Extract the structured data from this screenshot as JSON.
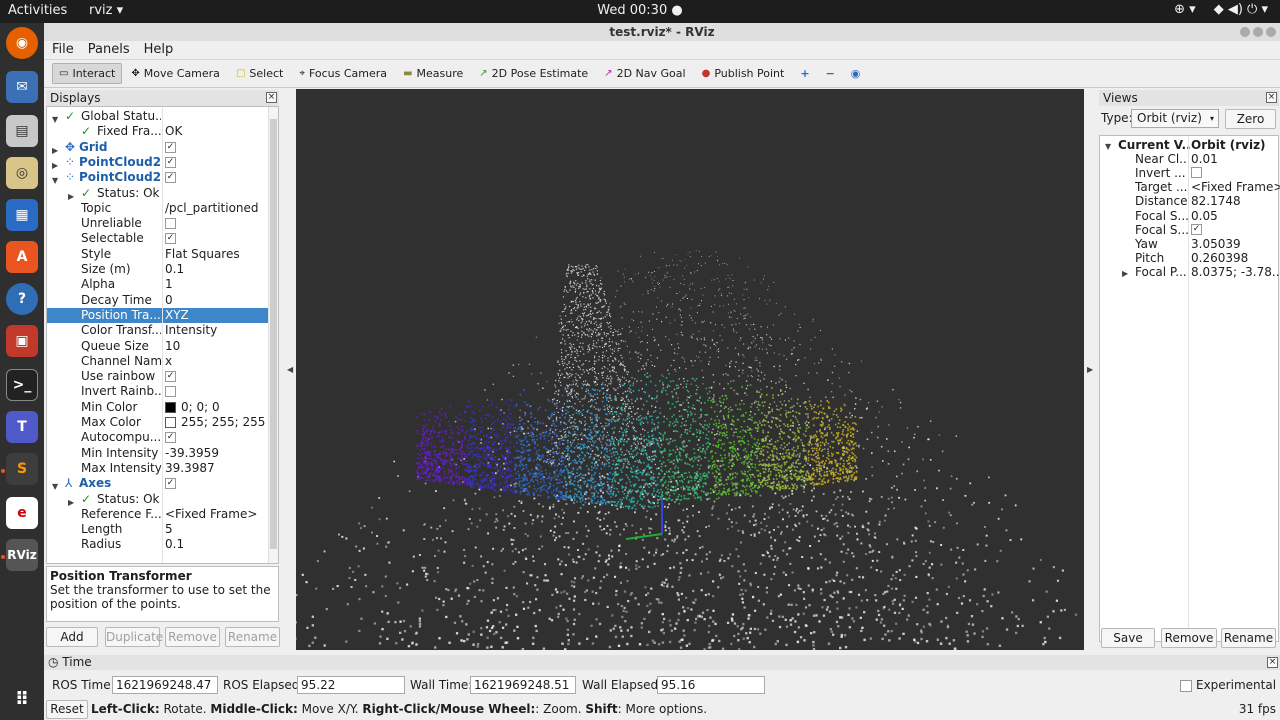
{
  "topbar": {
    "activities": "Activities",
    "app": "rviz ▾",
    "clock": "Wed 00:30 ●",
    "tray": [
      "⊕ ▾",
      "◆ ◀) ⏻ ▾"
    ]
  },
  "window": {
    "title": "test.rviz* - RViz"
  },
  "menu": [
    "File",
    "Panels",
    "Help"
  ],
  "toolbar": [
    {
      "label": "Interact",
      "icon": "▭"
    },
    {
      "label": "Move Camera",
      "icon": "✥"
    },
    {
      "label": "Select",
      "icon": "▢"
    },
    {
      "label": "Focus Camera",
      "icon": "⌖"
    },
    {
      "label": "Measure",
      "icon": "▬"
    },
    {
      "label": "2D Pose Estimate",
      "icon": "↗"
    },
    {
      "label": "2D Nav Goal",
      "icon": "↗"
    },
    {
      "label": "Publish Point",
      "icon": "●"
    }
  ],
  "displays": {
    "title": "Displays",
    "rows": [
      {
        "k": "Global Statu...",
        "v": "",
        "indent": 1,
        "exp": "▼",
        "chk": "✓"
      },
      {
        "k": "Fixed Fra...",
        "v": "OK",
        "indent": 2,
        "chk": "✓"
      },
      {
        "k": "Grid",
        "v": "☑",
        "indent": 1,
        "exp": "▶",
        "blue": true,
        "icon": "✥"
      },
      {
        "k": "PointCloud2",
        "v": "☑",
        "indent": 1,
        "exp": "▶",
        "blue": true,
        "icon": "⁘"
      },
      {
        "k": "PointCloud2",
        "v": "☑",
        "indent": 1,
        "exp": "▼",
        "blue": true,
        "icon": "⁘"
      },
      {
        "k": "Status: Ok",
        "v": "",
        "indent": 2,
        "exp": "▶",
        "chk": "✓"
      },
      {
        "k": "Topic",
        "v": "/pcl_partitioned",
        "indent": 2
      },
      {
        "k": "Unreliable",
        "v": "☐",
        "indent": 2
      },
      {
        "k": "Selectable",
        "v": "☑",
        "indent": 2
      },
      {
        "k": "Style",
        "v": "Flat Squares",
        "indent": 2
      },
      {
        "k": "Size (m)",
        "v": "0.1",
        "indent": 2
      },
      {
        "k": "Alpha",
        "v": "1",
        "indent": 2
      },
      {
        "k": "Decay Time",
        "v": "0",
        "indent": 2
      },
      {
        "k": "Position Tra...",
        "v": "XYZ",
        "indent": 2,
        "sel": true
      },
      {
        "k": "Color Transf...",
        "v": "Intensity",
        "indent": 2
      },
      {
        "k": "Queue Size",
        "v": "10",
        "indent": 2
      },
      {
        "k": "Channel Name",
        "v": "x",
        "indent": 2
      },
      {
        "k": "Use rainbow",
        "v": "☑",
        "indent": 2
      },
      {
        "k": "Invert Rainb...",
        "v": "☐",
        "indent": 2
      },
      {
        "k": "Min Color",
        "v": "0; 0; 0",
        "indent": 2,
        "sw": "#000000"
      },
      {
        "k": "Max Color",
        "v": "255; 255; 255",
        "indent": 2,
        "sw": "#ffffff"
      },
      {
        "k": "Autocompu...",
        "v": "☑",
        "indent": 2
      },
      {
        "k": "Min Intensity",
        "v": "-39.3959",
        "indent": 2
      },
      {
        "k": "Max Intensity",
        "v": "39.3987",
        "indent": 2
      },
      {
        "k": "Axes",
        "v": "☑",
        "indent": 1,
        "exp": "▼",
        "blue": true,
        "icon": "⅄"
      },
      {
        "k": "Status: Ok",
        "v": "",
        "indent": 2,
        "exp": "▶",
        "chk": "✓"
      },
      {
        "k": "Reference F...",
        "v": "<Fixed Frame>",
        "indent": 2
      },
      {
        "k": "Length",
        "v": "5",
        "indent": 2
      },
      {
        "k": "Radius",
        "v": "0.1",
        "indent": 2
      }
    ],
    "desc_title": "Position Transformer",
    "desc_text": "Set the transformer to use to set the position of the points.",
    "buttons": [
      "Add",
      "Duplicate",
      "Remove",
      "Rename"
    ]
  },
  "views": {
    "title": "Views",
    "type_label": "Type:",
    "type_value": "Orbit (rviz)",
    "zero": "Zero",
    "rows": [
      {
        "k": "Current V...",
        "v": "Orbit (rviz)",
        "head": true
      },
      {
        "k": "Near Cl...",
        "v": "0.01"
      },
      {
        "k": "Invert ...",
        "v": "☐"
      },
      {
        "k": "Target ...",
        "v": "<Fixed Frame>"
      },
      {
        "k": "Distance",
        "v": "82.1748"
      },
      {
        "k": "Focal S...",
        "v": "0.05"
      },
      {
        "k": "Focal S...",
        "v": "☑"
      },
      {
        "k": "Yaw",
        "v": "3.05039"
      },
      {
        "k": "Pitch",
        "v": "0.260398"
      },
      {
        "k": "Focal P...",
        "v": "8.0375; -3.78...",
        "exp": true
      }
    ],
    "buttons": [
      "Save",
      "Remove",
      "Rename"
    ]
  },
  "time": {
    "title": "Time",
    "ros_time_label": "ROS Time:",
    "ros_time": "1621969248.47",
    "ros_elapsed_label": "ROS Elapsed:",
    "ros_elapsed": "95.22",
    "wall_time_label": "Wall Time:",
    "wall_time": "1621969248.51",
    "wall_elapsed_label": "Wall Elapsed:",
    "wall_elapsed": "95.16",
    "experimental": "Experimental"
  },
  "status": {
    "reset": "Reset",
    "hint_b1": "Left-Click:",
    "hint_t1": " Rotate. ",
    "hint_b2": "Middle-Click:",
    "hint_t2": " Move X/Y. ",
    "hint_b3": "Right-Click/Mouse Wheel:",
    "hint_t3": ": Zoom. ",
    "hint_b4": "Shift",
    "hint_t4": ": More options.",
    "fps": "31 fps"
  },
  "colors": {
    "accent": "#3c86c9",
    "viewport_bg": "#303030",
    "ubuntu": "#e95420"
  }
}
